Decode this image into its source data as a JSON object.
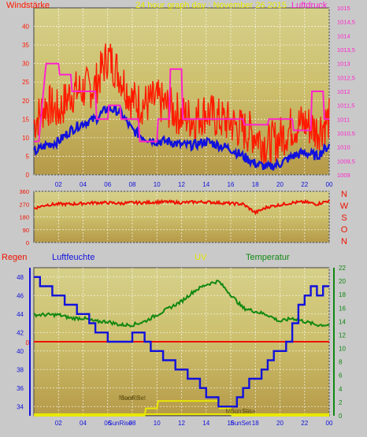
{
  "colors": {
    "background": "#c9c9c9",
    "wind_speed": "#1111dd",
    "wind_gust": "#ff1a00",
    "pressure": "#ff22cc",
    "wind_direction": "#ee1100",
    "rain": "#ee1100",
    "humidity": "#1111dd",
    "uv": "#e8e800",
    "temperature": "#118811",
    "sun_moon": "#e8e800"
  },
  "chart_data": [
    {
      "type": "line",
      "title": "24 hour graph day : November 26 2015",
      "left_axis_title": "Windstärke",
      "right_axis_title": "Luftdruck",
      "x_ticks": [
        "02",
        "04",
        "06",
        "08",
        "10",
        "12",
        "14",
        "16",
        "18",
        "20",
        "22",
        "00"
      ],
      "left_ticks": [
        "0",
        "5",
        "10",
        "15",
        "20",
        "25",
        "30",
        "35",
        "40"
      ],
      "right_ticks": [
        "1009",
        "1009,5",
        "1010",
        "1010,5",
        "1011",
        "1011,5",
        "1012",
        "1012,5",
        "1013",
        "1013,5",
        "1014",
        "1014,5",
        "1015"
      ],
      "ylim_left": [
        0,
        45
      ],
      "ylim_right": [
        1009,
        1015
      ],
      "grid": true,
      "series": [
        {
          "key": "gust",
          "x": [
            0,
            1,
            2,
            3,
            4,
            5,
            6,
            7,
            8,
            9,
            10,
            11,
            12,
            13,
            14,
            15,
            16,
            17,
            18,
            19,
            20,
            21,
            22,
            23,
            24
          ],
          "y": [
            14,
            19,
            17,
            22,
            23,
            24,
            32,
            27,
            20,
            19,
            20,
            18,
            16,
            15,
            17,
            15,
            14,
            12,
            11,
            8,
            10,
            13,
            14,
            12,
            15
          ]
        },
        {
          "key": "speed",
          "x": [
            0,
            1,
            2,
            3,
            4,
            5,
            6,
            7,
            8,
            9,
            10,
            11,
            12,
            13,
            14,
            15,
            16,
            17,
            18,
            19,
            20,
            21,
            22,
            23,
            24
          ],
          "y": [
            6,
            8,
            9,
            12,
            14,
            15,
            18,
            17,
            12,
            10,
            9,
            9,
            8,
            8,
            9,
            8,
            7,
            5,
            3,
            2,
            3,
            5,
            6,
            5,
            8
          ]
        },
        {
          "key": "pressure",
          "x": [
            0,
            0.4,
            0.9,
            1.0,
            2.0,
            2.1,
            3.0,
            3.1,
            5.0,
            5.1,
            6.0,
            6.1,
            7.0,
            7.1,
            8.5,
            8.6,
            10.0,
            10.1,
            11.0,
            11.1,
            12.0,
            12.1,
            17.0,
            17.1,
            19.0,
            19.1,
            21.0,
            21.1,
            22.5,
            22.6,
            23.5,
            23.6,
            24.0
          ],
          "y": [
            1010.2,
            1010.2,
            1012.6,
            1013.0,
            1013.0,
            1012.6,
            1012.6,
            1012.0,
            1012.0,
            1011.0,
            1011.0,
            1011.5,
            1011.5,
            1011.0,
            1011.0,
            1010.2,
            1010.2,
            1011.0,
            1011.0,
            1012.8,
            1012.8,
            1011.0,
            1011.0,
            1010.8,
            1010.8,
            1011.0,
            1011.0,
            1010.6,
            1010.6,
            1012.0,
            1012.0,
            1011.0,
            1011.0
          ]
        }
      ]
    },
    {
      "type": "line",
      "right_labels": [
        "N",
        "W",
        "S",
        "O",
        "N"
      ],
      "left_ticks": [
        "0",
        "90",
        "180",
        "270",
        "360"
      ],
      "ylim": [
        0,
        360
      ],
      "x": [
        0,
        1,
        2,
        3,
        4,
        5,
        6,
        7,
        8,
        9,
        10,
        11,
        12,
        13,
        14,
        15,
        16,
        17,
        18,
        19,
        20,
        21,
        22,
        23,
        24
      ],
      "values": [
        240,
        265,
        270,
        270,
        275,
        280,
        280,
        275,
        280,
        280,
        285,
        285,
        280,
        285,
        285,
        280,
        275,
        270,
        210,
        250,
        265,
        280,
        285,
        270,
        295
      ]
    },
    {
      "type": "line",
      "labels": {
        "rain": "Regen",
        "humidity": "Luftfeuchte",
        "uv": "UV",
        "temperature": "Temperatur"
      },
      "left_ticks": [
        "34",
        "36",
        "38",
        "40",
        "42",
        "44",
        "46",
        "48"
      ],
      "right_ticks": [
        "0",
        "2",
        "4",
        "6",
        "8",
        "10",
        "12",
        "14",
        "16",
        "18",
        "20",
        "22"
      ],
      "rain_tick": "0",
      "ylim_humidity": [
        33,
        49
      ],
      "ylim_temperature": [
        0,
        22
      ],
      "x_ticks": [
        "02",
        "04",
        "06",
        "08",
        "10",
        "12",
        "14",
        "16",
        "18",
        "20",
        "22",
        "00"
      ],
      "series": [
        {
          "key": "humidity",
          "x": [
            0,
            0.5,
            1,
            1.5,
            2,
            2.5,
            3,
            3.5,
            4,
            4.5,
            5,
            5.5,
            6,
            6.5,
            7,
            7.5,
            8,
            8.5,
            9,
            9.5,
            10,
            10.5,
            11,
            11.5,
            12,
            12.5,
            13,
            13.5,
            14,
            14.5,
            15,
            15.5,
            16,
            16.5,
            17,
            17.5,
            18,
            18.5,
            19,
            19.5,
            20,
            20.5,
            21,
            21.5,
            22,
            22.5,
            23,
            23.5,
            24
          ],
          "y": [
            48,
            47,
            47,
            46,
            46,
            45,
            45,
            44,
            44,
            43,
            42,
            42,
            41,
            41,
            41,
            41,
            42,
            42,
            41,
            40,
            40,
            39,
            39,
            38,
            38,
            37,
            37,
            36,
            35,
            35,
            34,
            34,
            34,
            35,
            36,
            37,
            37,
            38,
            39,
            40,
            40,
            41,
            43,
            45,
            46,
            47,
            46,
            47,
            47
          ]
        },
        {
          "key": "temperature",
          "x": [
            0,
            1,
            2,
            3,
            4,
            5,
            6,
            7,
            8,
            9,
            10,
            11,
            12,
            13,
            14,
            15,
            16,
            17,
            18,
            19,
            20,
            21,
            22,
            23,
            24
          ],
          "y": [
            15,
            15,
            15,
            14.5,
            14.5,
            14,
            14,
            13.5,
            13.5,
            14,
            15,
            16,
            17,
            18.5,
            19.5,
            20,
            18,
            16,
            15.5,
            15,
            14,
            14.5,
            14,
            13.5,
            13.5
          ]
        },
        {
          "key": "uv",
          "x": [
            0,
            9,
            9.1,
            10,
            10.1,
            15,
            15.1,
            16,
            16.1,
            24
          ],
          "y": [
            0,
            0,
            0.5,
            0.5,
            1,
            1,
            0.5,
            0.5,
            0,
            0
          ]
        }
      ],
      "annotations": [
        {
          "text": "SunRise",
          "x": 8.0
        },
        {
          "text": "SunSet",
          "x": 16.8
        },
        {
          "text": "Moon Set",
          "x": 8.0
        },
        {
          "text": "Moon Rise",
          "x": 16.8
        },
        {
          "text": "SunRise",
          "x": 7.0
        },
        {
          "text": "SunSet",
          "x": 16.8
        }
      ]
    }
  ]
}
